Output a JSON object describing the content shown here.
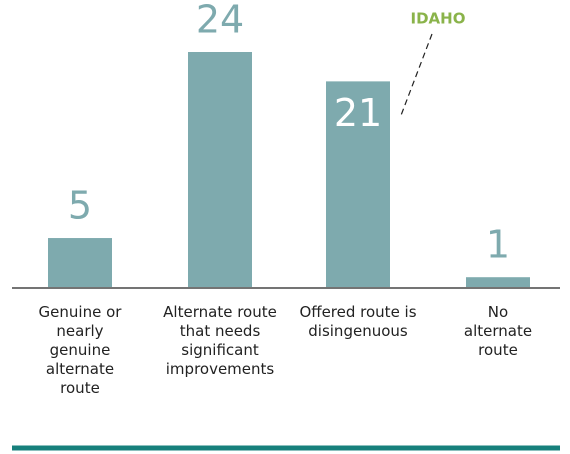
{
  "chart_data": {
    "type": "bar",
    "categories": [
      "Genuine or nearly genuine alternate route",
      "Alternate route that needs significant improvements",
      "Offered route is disingenuous",
      "No alternate route"
    ],
    "values": [
      5,
      24,
      21,
      1
    ],
    "color": "#7eaaae",
    "annotation": "IDAHO",
    "annotation_color": "#8ab34a"
  }
}
